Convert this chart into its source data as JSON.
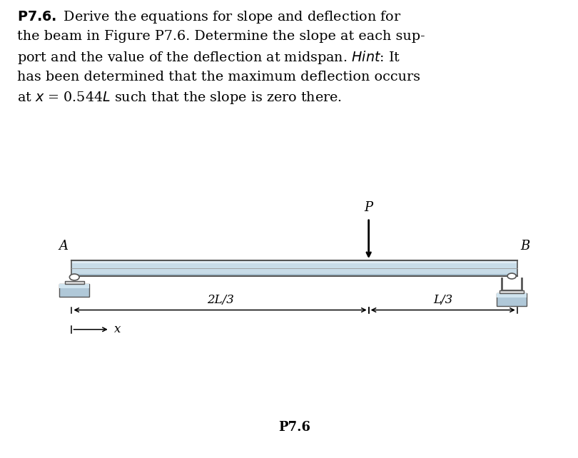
{
  "bg_color": "#ffffff",
  "beam_fill": "#c8dce8",
  "beam_highlight": "#e0ecf4",
  "beam_bottom": "#a8c0d0",
  "beam_outline": "#555555",
  "support_fill": "#b0c8d8",
  "support_outline": "#555555",
  "figure_label": "P7.6",
  "text_line1": "$\\bf{P7.6.}$ Derive the equations for slope and deflection for",
  "text_line2": "the beam in Figure P7.6. Determine the slope at each sup-",
  "text_line3": "port and the value of the deflection at midspan. $\\it{Hint}$: It",
  "text_line4": "has been determined that the maximum deflection occurs",
  "text_line5": "at $x$ = 0.544$L$ such that the slope is zero there."
}
